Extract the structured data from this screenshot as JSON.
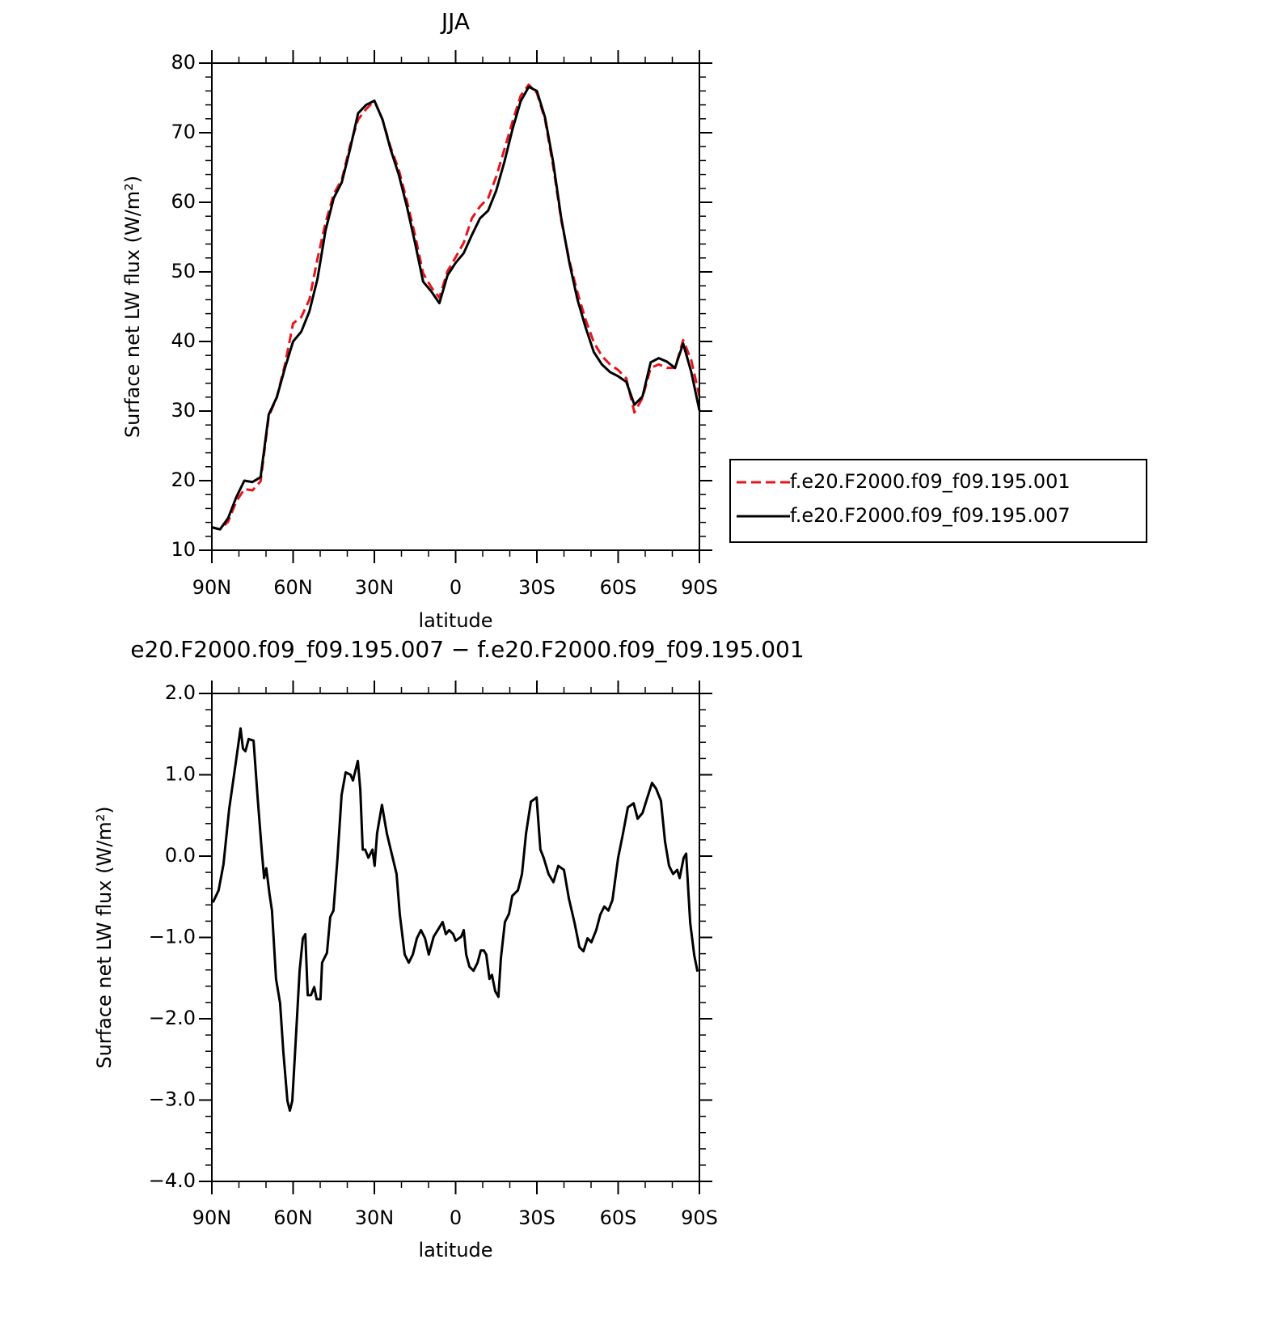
{
  "chart_data": [
    {
      "type": "line",
      "title": "JJA",
      "xlabel": "latitude",
      "ylabel": "Surface net LW flux (W/m²)",
      "x": [
        90,
        87,
        84,
        81,
        78,
        75,
        72,
        69,
        66,
        63,
        60,
        57,
        54,
        51,
        48,
        45,
        42,
        39,
        36,
        33,
        30,
        27,
        24,
        21,
        18,
        15,
        12,
        9,
        6,
        3,
        0,
        -3,
        -6,
        -9,
        -12,
        -15,
        -18,
        -21,
        -24,
        -27,
        -30,
        -33,
        -36,
        -39,
        -42,
        -45,
        -48,
        -51,
        -54,
        -57,
        -60,
        -63,
        -66,
        -69,
        -72,
        -75,
        -78,
        -81,
        -84,
        -87,
        -90
      ],
      "series": [
        {
          "name": "f.e20.F2000.f09_f09.195.001",
          "color": "#e8141c",
          "dashed": true,
          "values": [
            13.3,
            13.0,
            14.1,
            17.0,
            18.8,
            18.6,
            19.9,
            29.2,
            32.0,
            36.7,
            42.6,
            43.5,
            46.0,
            51.9,
            57.1,
            61.2,
            63.3,
            68.1,
            71.9,
            73.4,
            74.6,
            71.9,
            67.9,
            64.7,
            60.2,
            55.3,
            49.8,
            47.8,
            46.3,
            50.1,
            52.1,
            54.2,
            57.7,
            59.4,
            60.6,
            63.7,
            67.6,
            71.6,
            75.3,
            76.9,
            75.7,
            71.9,
            65.2,
            57.4,
            51.6,
            47.0,
            43.1,
            39.9,
            37.9,
            36.7,
            35.9,
            34.7,
            29.8,
            31.9,
            36.2,
            36.7,
            36.2,
            36.2,
            40.2,
            37.3,
            32.1
          ]
        },
        {
          "name": "f.e20.F2000.f09_f09.195.007",
          "color": "#000000",
          "dashed": false,
          "values": [
            13.3,
            13.0,
            14.6,
            17.6,
            20.0,
            19.8,
            20.5,
            29.5,
            32.0,
            36.2,
            40.0,
            41.4,
            44.3,
            49.0,
            56.0,
            60.6,
            62.9,
            67.6,
            72.8,
            74.0,
            74.6,
            71.9,
            67.6,
            64.0,
            59.4,
            54.2,
            48.6,
            47.2,
            45.5,
            49.5,
            51.3,
            52.7,
            55.3,
            57.7,
            58.8,
            61.7,
            65.8,
            70.5,
            74.5,
            76.6,
            76.0,
            72.2,
            65.8,
            57.7,
            51.3,
            46.0,
            42.0,
            38.5,
            36.7,
            35.6,
            35.0,
            34.2,
            30.9,
            32.1,
            37.0,
            37.6,
            37.1,
            36.2,
            39.7,
            35.6,
            30.1
          ]
        }
      ],
      "xlim": [
        90,
        -90
      ],
      "xticks": [
        {
          "value": 90,
          "label": "90N"
        },
        {
          "value": 60,
          "label": "60N"
        },
        {
          "value": 30,
          "label": "30N"
        },
        0,
        {
          "value": -30,
          "label": "30S"
        },
        {
          "value": -60,
          "label": "60S"
        },
        {
          "value": -90,
          "label": "90S"
        }
      ],
      "ylim": [
        10,
        80
      ],
      "yticks": [
        10,
        20,
        30,
        40,
        50,
        60,
        70,
        80
      ],
      "legend": "outside-right"
    },
    {
      "type": "line",
      "title": "e20.F2000.f09_f09.195.007 − f.e20.F2000.f09_f09.195.001",
      "xlabel": "latitude",
      "ylabel": "Surface net LW flux (W/m²)",
      "x": [
        89.6,
        87.5,
        85.7,
        83.6,
        81.5,
        79.4,
        78.5,
        77.6,
        76.4,
        74.6,
        73.1,
        71.6,
        70.7,
        69.9,
        68.7,
        67.8,
        66.3,
        64.8,
        63.6,
        62.1,
        61.2,
        60.3,
        59.1,
        57.6,
        56.4,
        55.5,
        54.6,
        53.4,
        52.2,
        51.3,
        49.9,
        49.3,
        47.5,
        46.3,
        45.1,
        43.6,
        42.1,
        40.6,
        38.8,
        37.9,
        36.1,
        35.2,
        34.3,
        33.4,
        32.2,
        30.7,
        29.9,
        29.0,
        27.2,
        25.4,
        23.6,
        21.8,
        20.6,
        18.8,
        17.3,
        15.8,
        14.3,
        12.8,
        11.3,
        9.9,
        8.1,
        6.6,
        4.8,
        3.6,
        2.4,
        0.9,
        0,
        -2.1,
        -3.0,
        -3.9,
        -5.1,
        -6.6,
        -8.1,
        -9.3,
        -10.4,
        -11.3,
        -12.5,
        -13.4,
        -14.6,
        -15.8,
        -16.7,
        -18.2,
        -19.7,
        -20.9,
        -23.0,
        -24.5,
        -26.0,
        -27.8,
        -29.9,
        -31.3,
        -32.5,
        -34.3,
        -36.1,
        -37.9,
        -40.0,
        -41.8,
        -43.9,
        -45.7,
        -47.2,
        -48.7,
        -50.1,
        -51.9,
        -53.4,
        -54.9,
        -56.4,
        -57.9,
        -60.0,
        -61.8,
        -63.6,
        -65.7,
        -67.2,
        -69.0,
        -70.4,
        -72.5,
        -74.0,
        -75.8,
        -77.3,
        -78.8,
        -80.3,
        -81.8,
        -82.7,
        -84.2,
        -85.1,
        -86.6,
        -88.1,
        -89.3
      ],
      "color": "#000000",
      "values": [
        -0.57,
        -0.42,
        -0.1,
        0.58,
        1.07,
        1.57,
        1.32,
        1.29,
        1.44,
        1.42,
        0.72,
        0.08,
        -0.27,
        -0.15,
        -0.47,
        -0.67,
        -1.51,
        -1.81,
        -2.41,
        -3.01,
        -3.13,
        -3.01,
        -2.31,
        -1.41,
        -1.01,
        -0.96,
        -1.71,
        -1.71,
        -1.61,
        -1.76,
        -1.76,
        -1.31,
        -1.19,
        -0.75,
        -0.67,
        -0.02,
        0.75,
        1.03,
        1.0,
        0.93,
        1.17,
        0.82,
        0.08,
        0.08,
        -0.02,
        0.08,
        -0.12,
        0.28,
        0.63,
        0.28,
        0.03,
        -0.22,
        -0.72,
        -1.21,
        -1.31,
        -1.21,
        -1.01,
        -0.91,
        -1.01,
        -1.21,
        -0.99,
        -0.91,
        -0.81,
        -0.96,
        -0.91,
        -0.96,
        -1.04,
        -0.99,
        -0.91,
        -1.21,
        -1.36,
        -1.41,
        -1.31,
        -1.16,
        -1.16,
        -1.21,
        -1.51,
        -1.46,
        -1.66,
        -1.73,
        -1.26,
        -0.81,
        -0.71,
        -0.49,
        -0.42,
        -0.22,
        0.28,
        0.67,
        0.72,
        0.08,
        -0.02,
        -0.22,
        -0.32,
        -0.12,
        -0.17,
        -0.52,
        -0.82,
        -1.12,
        -1.17,
        -1.01,
        -1.06,
        -0.91,
        -0.72,
        -0.62,
        -0.67,
        -0.54,
        -0.02,
        0.28,
        0.6,
        0.65,
        0.46,
        0.53,
        0.68,
        0.9,
        0.83,
        0.68,
        0.18,
        -0.12,
        -0.22,
        -0.17,
        -0.27,
        -0.02,
        0.03,
        -0.82,
        -1.22,
        -1.42
      ],
      "xlim": [
        90,
        -90
      ],
      "xticks": [
        {
          "value": 90,
          "label": "90N"
        },
        {
          "value": 60,
          "label": "60N"
        },
        {
          "value": 30,
          "label": "30N"
        },
        0,
        {
          "value": -30,
          "label": "30S"
        },
        {
          "value": -60,
          "label": "60S"
        },
        {
          "value": -90,
          "label": "90S"
        }
      ],
      "ylim": [
        -4,
        2
      ],
      "yticks": [
        {
          "value": -4,
          "label": "−4.0"
        },
        {
          "value": -3,
          "label": "−3.0"
        },
        {
          "value": -2,
          "label": "−2.0"
        },
        {
          "value": -1,
          "label": "−1.0"
        },
        {
          "value": 0,
          "label": "0.0"
        },
        {
          "value": 1,
          "label": "1.0"
        },
        {
          "value": 2,
          "label": "2.0"
        }
      ]
    }
  ]
}
